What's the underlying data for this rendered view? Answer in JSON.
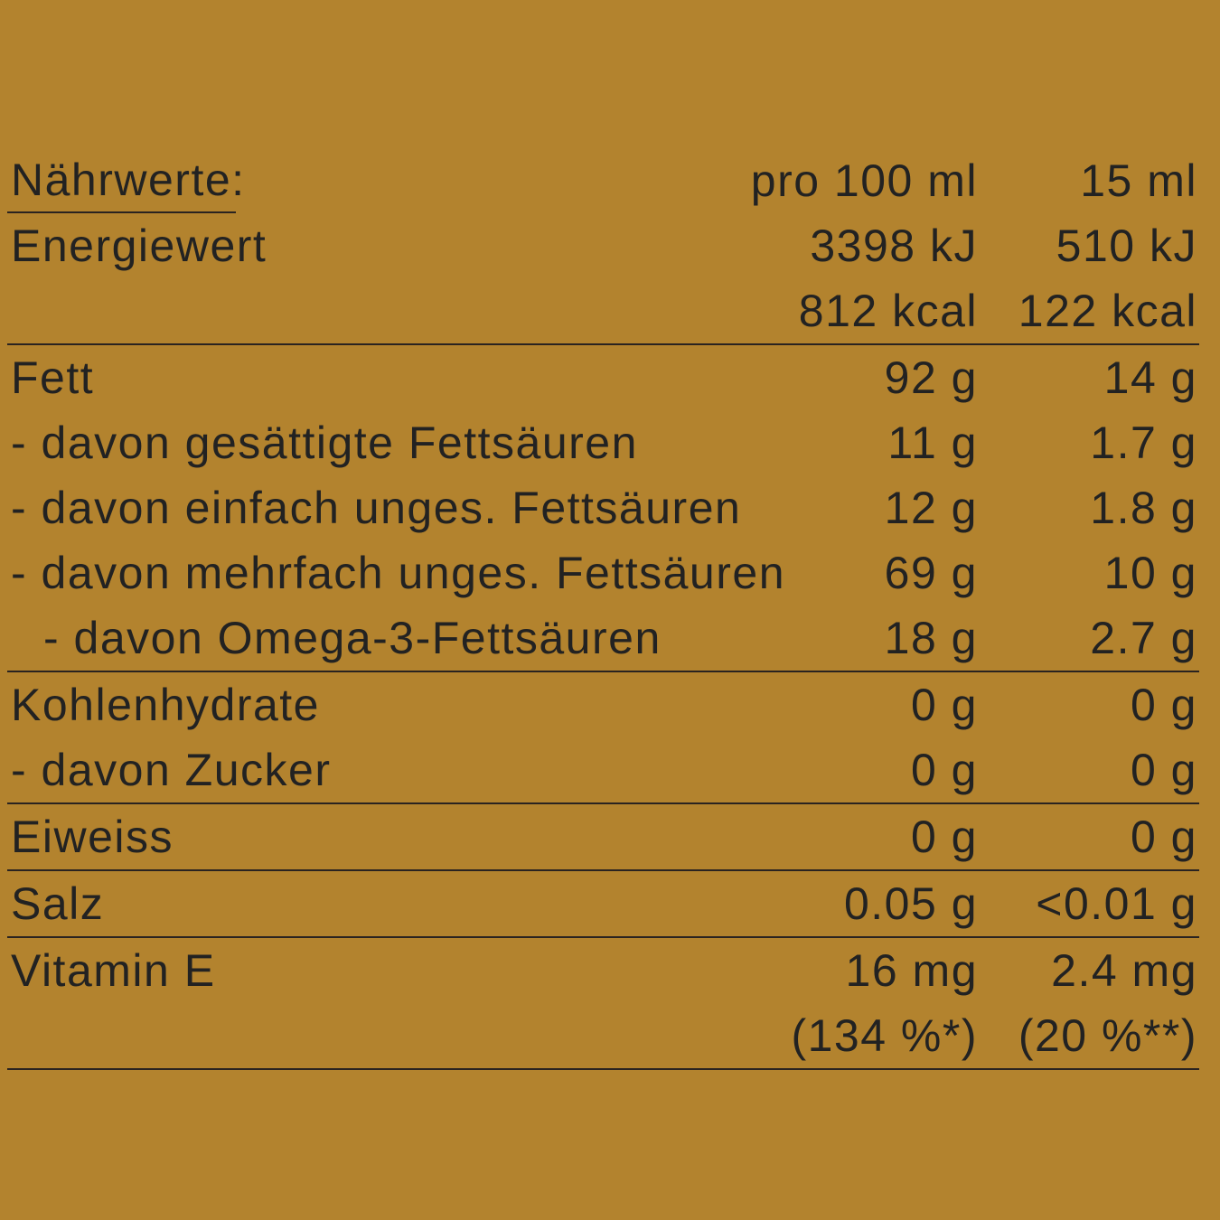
{
  "header": {
    "label": "Nährwerte:",
    "col1": "pro 100 ml",
    "col2": "15 ml"
  },
  "rows": [
    {
      "label": "Energiewert",
      "col1": "3398 kJ",
      "col2": "510 kJ"
    },
    {
      "label": "",
      "col1": "812 kcal",
      "col2": "122 kcal"
    },
    {
      "label": "Fett",
      "col1": "92 g",
      "col2": "14 g"
    },
    {
      "label": "- davon gesättigte Fettsäuren",
      "col1": "11 g",
      "col2": "1.7 g"
    },
    {
      "label": "- davon einfach unges. Fettsäuren",
      "col1": "12 g",
      "col2": "1.8 g"
    },
    {
      "label": "- davon mehrfach unges. Fettsäuren",
      "col1": "69 g",
      "col2": "10 g"
    },
    {
      "label": "-  davon Omega-3-Fettsäuren",
      "col1": "18 g",
      "col2": "2.7 g"
    },
    {
      "label": "Kohlenhydrate",
      "col1": "0 g",
      "col2": "0 g"
    },
    {
      "label": "- davon Zucker",
      "col1": "0 g",
      "col2": "0 g"
    },
    {
      "label": "Eiweiss",
      "col1": "0 g",
      "col2": "0 g"
    },
    {
      "label": "Salz",
      "col1": "0.05 g",
      "col2": "<0.01 g"
    },
    {
      "label": "Vitamin E",
      "col1": "16 mg",
      "col2": "2.4 mg"
    },
    {
      "label": "",
      "col1": "(134 %*)",
      "col2": "(20 %**)"
    }
  ],
  "colors": {
    "background": "#b3832e",
    "text": "#222222"
  }
}
